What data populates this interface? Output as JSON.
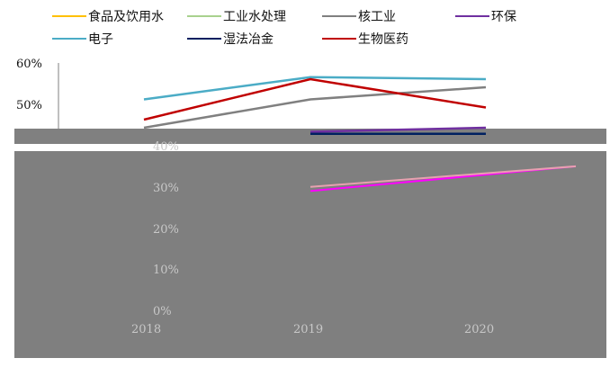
{
  "chart_data": {
    "type": "line",
    "categories": [
      "2018",
      "2019",
      "2020"
    ],
    "yticks": [
      "0%",
      "10%",
      "20%",
      "30%",
      "40%",
      "50%",
      "60%"
    ],
    "ylim": [
      0,
      0.6
    ],
    "series": [
      {
        "name": "食品及饮用水",
        "color": "#FFC000",
        "values": [
          null,
          0.29,
          0.35
        ]
      },
      {
        "name": "工业水处理",
        "color": "#A9D18E",
        "values": [
          null,
          0.3,
          0.35
        ]
      },
      {
        "name": "核工业",
        "color": "#808080",
        "values": [
          0.44,
          0.51,
          0.54
        ]
      },
      {
        "name": "环保",
        "color": "#7030A0",
        "values": [
          null,
          0.43,
          0.44
        ]
      },
      {
        "name": "电子",
        "color": "#4BACC6",
        "values": [
          0.51,
          0.565,
          0.56
        ]
      },
      {
        "name": "湿法冶金",
        "color": "#002060",
        "values": [
          null,
          0.425,
          0.425
        ]
      },
      {
        "name": "生物医药",
        "color": "#C00000",
        "values": [
          0.46,
          0.56,
          0.49
        ]
      }
    ],
    "title": "",
    "xlabel": "",
    "ylabel": "",
    "legend_position": "top",
    "grid": false
  }
}
